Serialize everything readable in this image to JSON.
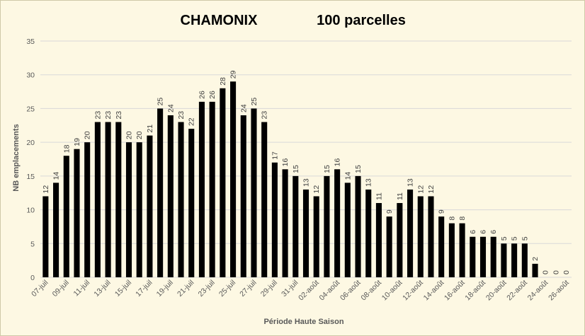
{
  "chart_data": {
    "type": "bar",
    "title_left": "CHAMONIX",
    "title_right": "100 parcelles",
    "xlabel": "Période Haute Saison",
    "ylabel": "NB emplacements",
    "ylim": [
      0,
      35
    ],
    "yticks": [
      0,
      5,
      10,
      15,
      20,
      25,
      30,
      35
    ],
    "grid": true,
    "legend": "none",
    "bar_color": "#000000",
    "background": "#fdf8e3",
    "x_tick_labels": [
      "07-juil",
      "09-juil",
      "11-juil",
      "13-juil",
      "15-juil",
      "17-juil",
      "19-juil",
      "21-juil",
      "23-juil",
      "25-juil",
      "27-juil",
      "29-juil",
      "31-juil",
      "02-août",
      "04-août",
      "06-août",
      "08-août",
      "10-août",
      "12-août",
      "14-août",
      "16-août",
      "18-août",
      "20-août",
      "22-août",
      "24-août",
      "26-août"
    ],
    "values": [
      12,
      14,
      18,
      19,
      20,
      23,
      23,
      23,
      20,
      20,
      21,
      25,
      24,
      23,
      22,
      26,
      26,
      28,
      29,
      24,
      25,
      23,
      17,
      16,
      15,
      13,
      12,
      15,
      16,
      14,
      15,
      13,
      11,
      9,
      11,
      13,
      12,
      12,
      9,
      8,
      8,
      6,
      6,
      6,
      5,
      5,
      5,
      2,
      0,
      0,
      0
    ]
  }
}
